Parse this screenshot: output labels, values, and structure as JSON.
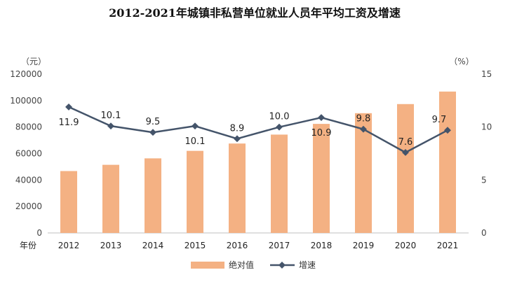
{
  "chart_data": {
    "type": "bar+line",
    "title": "2012-2021年城镇非私营单位就业人员年平均工资及增速",
    "x_axis_label": "年份",
    "categories": [
      "2012",
      "2013",
      "2014",
      "2015",
      "2016",
      "2017",
      "2018",
      "2019",
      "2020",
      "2021"
    ],
    "series": [
      {
        "name": "绝对值",
        "type": "bar",
        "axis": "left",
        "values": [
          46769,
          51483,
          56360,
          62029,
          67569,
          74318,
          82413,
          90501,
          97379,
          106837
        ],
        "color": "#F4B183"
      },
      {
        "name": "增速",
        "type": "line",
        "axis": "right",
        "values": [
          11.9,
          10.1,
          9.5,
          10.1,
          8.9,
          10.0,
          10.9,
          9.8,
          7.6,
          9.7
        ],
        "labels": [
          "11.9",
          "10.1",
          "9.5",
          "10.1",
          "8.9",
          "10.0",
          "10.9",
          "9.8",
          "7.6",
          "9.7"
        ],
        "color": "#44546A"
      }
    ],
    "left_axis": {
      "unit": "（元）",
      "ylim": [
        0,
        120000
      ],
      "ticks": [
        0,
        20000,
        40000,
        60000,
        80000,
        100000,
        120000
      ],
      "tick_labels": [
        "0",
        "20000",
        "40000",
        "60000",
        "80000",
        "100000",
        "120000"
      ]
    },
    "right_axis": {
      "unit": "（%）",
      "ylim": [
        0,
        15
      ],
      "ticks": [
        0,
        5,
        10,
        15
      ],
      "tick_labels": [
        "0",
        "5",
        "10",
        "15"
      ]
    },
    "grid": false,
    "legend_position": "bottom-center"
  }
}
